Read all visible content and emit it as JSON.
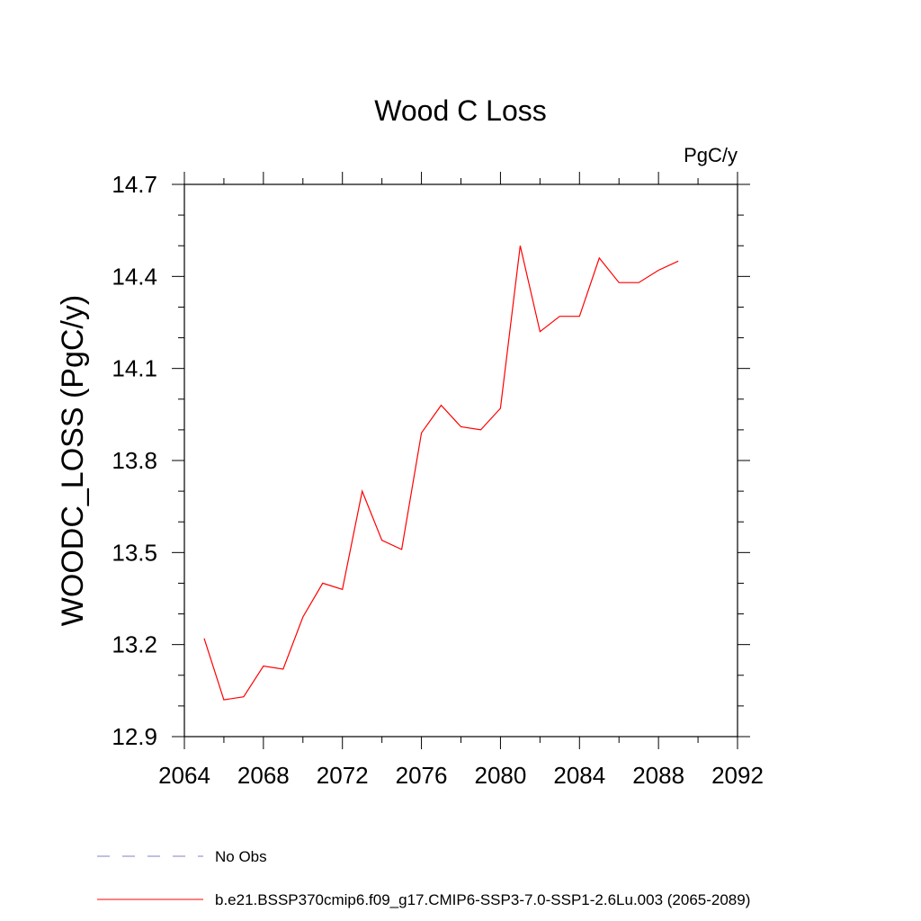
{
  "chart_data": {
    "type": "line",
    "title": "Wood C Loss",
    "units_label": "PgC/y",
    "xlabel": "",
    "ylabel": "WOODC_LOSS  (PgC/y)",
    "xlim": [
      2064,
      2092
    ],
    "ylim": [
      12.9,
      14.7
    ],
    "x_ticks": [
      "2064",
      "2068",
      "2072",
      "2076",
      "2080",
      "2084",
      "2088",
      "2092"
    ],
    "y_ticks": [
      "12.9",
      "13.2",
      "13.5",
      "13.8",
      "14.1",
      "14.4",
      "14.7"
    ],
    "grid": false,
    "legend_position": "bottom",
    "legend": [
      {
        "label": "No Obs",
        "color": "#8080c0",
        "style": "dashed"
      },
      {
        "label": "b.e21.BSSP370cmip6.f09_g17.CMIP6-SSP3-7.0-SSP1-2.6Lu.003 (2065-2089)",
        "color": "#ff0000",
        "style": "solid"
      }
    ],
    "series": [
      {
        "name": "b.e21.BSSP370cmip6.f09_g17.CMIP6-SSP3-7.0-SSP1-2.6Lu.003 (2065-2089)",
        "color": "#ff0000",
        "x": [
          2065,
          2066,
          2067,
          2068,
          2069,
          2070,
          2071,
          2072,
          2073,
          2074,
          2075,
          2076,
          2077,
          2078,
          2079,
          2080,
          2081,
          2082,
          2083,
          2084,
          2085,
          2086,
          2087,
          2088,
          2089
        ],
        "y": [
          13.22,
          13.02,
          13.03,
          13.13,
          13.12,
          13.29,
          13.4,
          13.38,
          13.7,
          13.54,
          13.51,
          13.89,
          13.98,
          13.91,
          13.9,
          13.97,
          14.5,
          14.22,
          14.27,
          14.27,
          14.46,
          14.38,
          14.38,
          14.42,
          14.45
        ]
      }
    ]
  }
}
